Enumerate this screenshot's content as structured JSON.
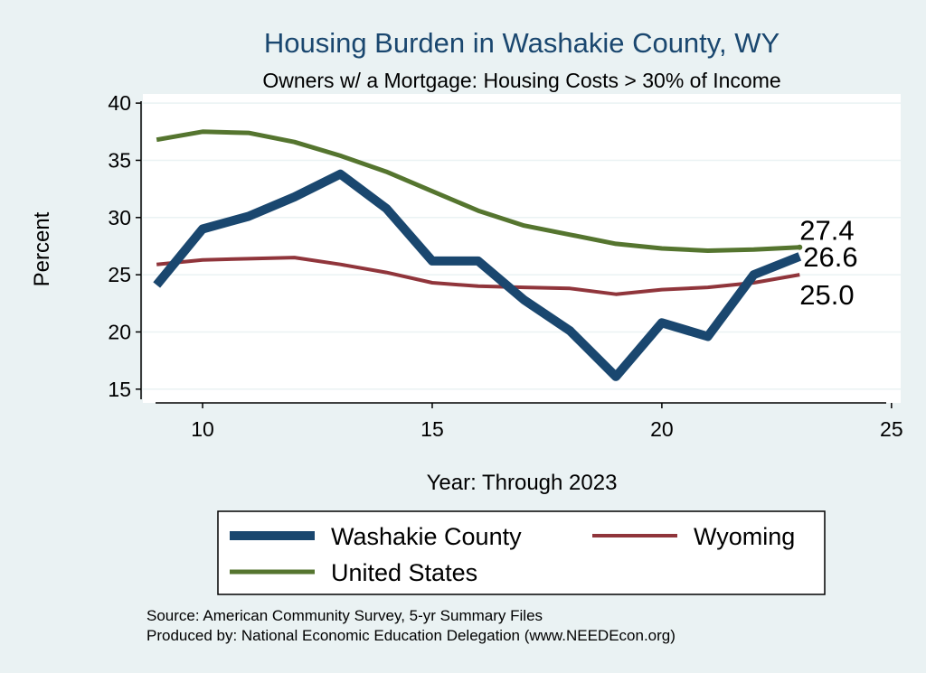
{
  "chart_data": {
    "type": "line",
    "title": "Housing Burden in Washakie County, WY",
    "subtitle": "Owners w/ a Mortgage: Housing Costs > 30% of Income",
    "xlabel": "Year: Through 2023",
    "ylabel": "Percent",
    "xlim": [
      8.7,
      25.2
    ],
    "ylim": [
      13.8,
      40.8
    ],
    "xticks": [
      10,
      15,
      20,
      25
    ],
    "yticks": [
      15,
      20,
      25,
      30,
      35,
      40
    ],
    "grid": "horizontal",
    "legend_position": "bottom",
    "x": [
      9,
      10,
      11,
      12,
      13,
      14,
      15,
      16,
      17,
      18,
      19,
      20,
      21,
      22,
      23
    ],
    "series": [
      {
        "name": "Washakie County",
        "color": "#1a476f",
        "width": 10,
        "values": [
          24.1,
          29.0,
          30.1,
          31.8,
          33.8,
          30.8,
          26.2,
          26.2,
          22.8,
          20.1,
          16.1,
          20.8,
          19.6,
          25.0,
          26.6
        ],
        "end_label": "26.6"
      },
      {
        "name": "Wyoming",
        "color": "#90353b",
        "width": 4,
        "values": [
          25.9,
          26.3,
          26.4,
          26.5,
          25.9,
          25.2,
          24.3,
          24.0,
          23.9,
          23.8,
          23.3,
          23.7,
          23.9,
          24.3,
          25.0
        ],
        "end_label": "25.0"
      },
      {
        "name": "United States",
        "color": "#55752f",
        "width": 5,
        "values": [
          36.8,
          37.5,
          37.4,
          36.6,
          35.4,
          34.0,
          32.3,
          30.6,
          29.3,
          28.5,
          27.7,
          27.3,
          27.1,
          27.2,
          27.4
        ],
        "end_label": "27.4"
      }
    ]
  },
  "notes": {
    "source": "Source: American Community Survey, 5-yr Summary Files",
    "producer": "Produced by: National Economic Education Delegation (www.NEEDEcon.org)"
  }
}
